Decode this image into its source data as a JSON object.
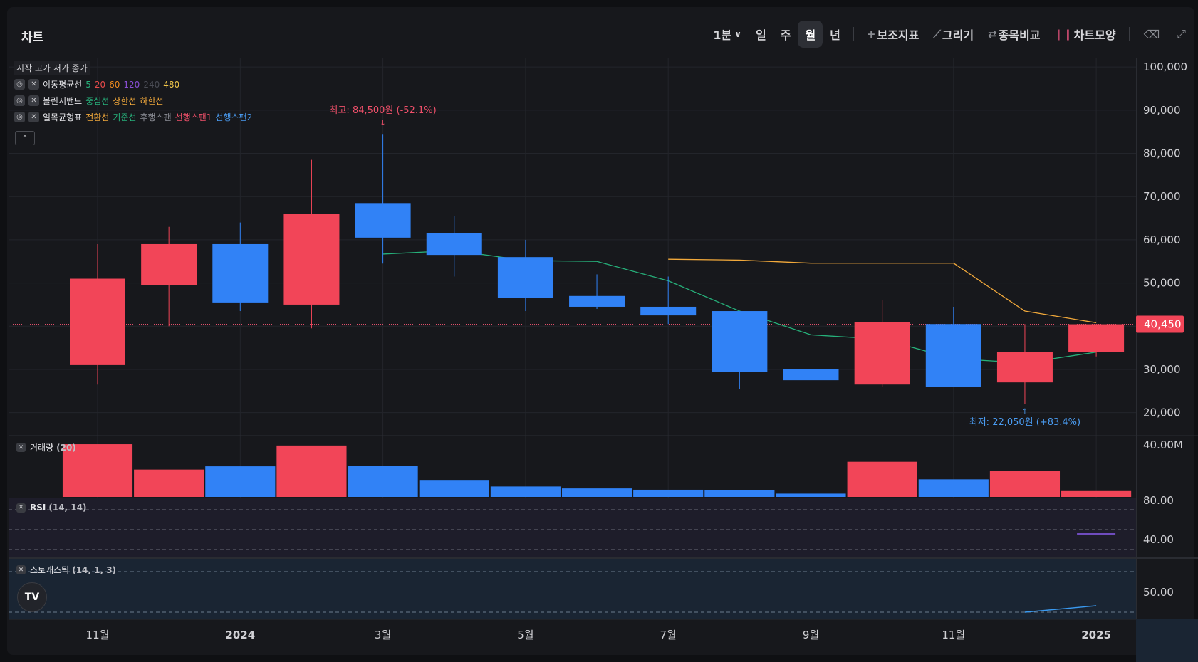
{
  "header": {
    "title": "차트",
    "intervals": [
      {
        "label": "1분",
        "active": false,
        "has_dropdown": true
      },
      {
        "label": "일",
        "active": false
      },
      {
        "label": "주",
        "active": false
      },
      {
        "label": "월",
        "active": true
      },
      {
        "label": "년",
        "active": false
      }
    ],
    "tools": [
      {
        "label": "보조지표",
        "icon": "plus-icon"
      },
      {
        "label": "그리기",
        "icon": "pencil-icon"
      },
      {
        "label": "종목비교",
        "icon": "swap-icon"
      },
      {
        "label": "차트모양",
        "icon": "candles-icon"
      }
    ],
    "right_icons": [
      "trash-icon",
      "expand-icon"
    ]
  },
  "legend": {
    "ohlc_label": "시작 고가 저가 종가",
    "indicators": [
      {
        "name": "이동평균선",
        "parts": [
          {
            "text": "5",
            "color": "#26b07a"
          },
          {
            "text": "20",
            "color": "#e84a4a"
          },
          {
            "text": "60",
            "color": "#f08c1e"
          },
          {
            "text": "120",
            "color": "#8a4fd6"
          },
          {
            "text": "240",
            "color": "#4a4c55"
          },
          {
            "text": "480",
            "color": "#f2c84b"
          }
        ]
      },
      {
        "name": "볼린저밴드",
        "parts": [
          {
            "text": "중심선",
            "color": "#26b07a"
          },
          {
            "text": "상한선",
            "color": "#f2a93b"
          },
          {
            "text": "하한선",
            "color": "#f2a93b"
          }
        ]
      },
      {
        "name": "일목균형표",
        "parts": [
          {
            "text": "전환선",
            "color": "#f2a93b"
          },
          {
            "text": "기준선",
            "color": "#26b07a"
          },
          {
            "text": "후행스팬",
            "color": "#8c8e96"
          },
          {
            "text": "선행스팬1",
            "color": "#f0506a"
          },
          {
            "text": "선행스팬2",
            "color": "#4a9cf2"
          }
        ]
      }
    ],
    "collapse_icon": "chevron-up-icon"
  },
  "colors": {
    "up": "#f24558",
    "down": "#3182f6",
    "conversion": "#f2a93b",
    "base": "#26b07a",
    "grid": "#23252b"
  },
  "chart_data": [
    {
      "type": "candlestick",
      "x_tick_labels": [
        "11월",
        "2024",
        "3월",
        "5월",
        "7월",
        "9월",
        "11월",
        "2025"
      ],
      "y_ticks": [
        20000,
        30000,
        40000,
        50000,
        60000,
        70000,
        80000,
        90000,
        100000
      ],
      "y_tick_labels": [
        "20,000",
        "30,000",
        "40,000",
        "50,000",
        "60,000",
        "70,000",
        "80,000",
        "90,000",
        "100,000"
      ],
      "ylim": [
        15000,
        102000
      ],
      "candles": [
        {
          "open": 31000,
          "high": 59000,
          "low": 26500,
          "close": 51000
        },
        {
          "open": 49500,
          "high": 63000,
          "low": 40000,
          "close": 59000
        },
        {
          "open": 59000,
          "high": 64000,
          "low": 43500,
          "close": 45500
        },
        {
          "open": 45000,
          "high": 78500,
          "low": 39500,
          "close": 66000
        },
        {
          "open": 68500,
          "high": 84500,
          "low": 54500,
          "close": 60500
        },
        {
          "open": 61500,
          "high": 65500,
          "low": 51500,
          "close": 56500
        },
        {
          "open": 56000,
          "high": 60000,
          "low": 43500,
          "close": 46500
        },
        {
          "open": 47000,
          "high": 52000,
          "low": 44000,
          "close": 44500
        },
        {
          "open": 44500,
          "high": 51500,
          "low": 40500,
          "close": 42500
        },
        {
          "open": 43500,
          "high": 43500,
          "low": 25500,
          "close": 29500
        },
        {
          "open": 30000,
          "high": 31000,
          "low": 24500,
          "close": 27500
        },
        {
          "open": 26500,
          "high": 46000,
          "low": 26000,
          "close": 41000
        },
        {
          "open": 40500,
          "high": 44500,
          "low": 26000,
          "close": 26000
        },
        {
          "open": 27000,
          "high": 40500,
          "low": 22050,
          "close": 34000
        },
        {
          "open": 34000,
          "high": 40450,
          "low": 33000,
          "close": 40450
        }
      ],
      "conversion_line": [
        null,
        null,
        null,
        null,
        null,
        null,
        null,
        null,
        55500,
        55300,
        54600,
        54600,
        54600,
        43500,
        40800
      ],
      "base_line": [
        null,
        null,
        null,
        null,
        56700,
        57500,
        55200,
        55000,
        50500,
        43500,
        38000,
        37000,
        32500,
        31500,
        34000
      ],
      "current_price": 40450,
      "current_price_label": "40,450",
      "max_annotation": "최고: 84,500원 (-52.1%)",
      "min_annotation": "최저: 22,050원 (+83.4%)"
    },
    {
      "type": "bar",
      "title": "거래량",
      "param": "(20)",
      "y_tick_label": "40.00M",
      "values": [
        40.5,
        21,
        23.5,
        39.5,
        24,
        12.5,
        8,
        6.5,
        5.5,
        5,
        2.5,
        27,
        13.5,
        20,
        4.5
      ],
      "directions": [
        "up",
        "up",
        "down",
        "up",
        "down",
        "down",
        "down",
        "down",
        "down",
        "down",
        "down",
        "up",
        "down",
        "up",
        "up"
      ]
    },
    {
      "type": "line",
      "title": "RSI",
      "param": "(14, 14)",
      "y_tick_labels": [
        "80.00",
        "40.00"
      ],
      "values": [
        null,
        null,
        null,
        null,
        null,
        null,
        null,
        null,
        null,
        null,
        null,
        null,
        null,
        null,
        43
      ]
    },
    {
      "type": "line",
      "title": "스토캐스틱",
      "param": "(14, 1, 3)",
      "y_tick_labels": [
        "50.00"
      ],
      "values": [
        null,
        null,
        null,
        null,
        null,
        null,
        null,
        null,
        null,
        null,
        null,
        null,
        null,
        0,
        10
      ]
    }
  ]
}
